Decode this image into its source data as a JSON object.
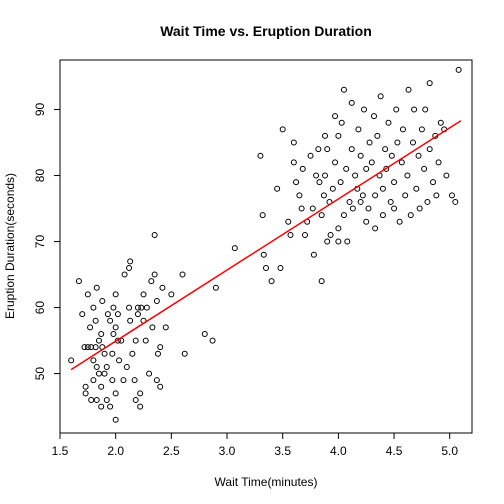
{
  "chart_data": {
    "type": "scatter",
    "title": "Wait Time vs. Eruption Duration",
    "xlabel": "Wait Time(minutes)",
    "ylabel": "Eruption Duration(seconds)",
    "xlim": [
      1.5,
      5.2
    ],
    "ylim": [
      41,
      97.5
    ],
    "x_ticks": [
      1.5,
      2.0,
      2.5,
      3.0,
      3.5,
      4.0,
      4.5,
      5.0
    ],
    "x_tick_labels": [
      "1.5",
      "2.0",
      "2.5",
      "3.0",
      "3.5",
      "4.0",
      "4.5",
      "5.0"
    ],
    "y_ticks": [
      50,
      60,
      70,
      80,
      90
    ],
    "y_tick_labels": [
      "50",
      "60",
      "70",
      "80",
      "90"
    ],
    "grid": false,
    "legend": "none",
    "point_color": "#000000",
    "fit_line": {
      "color": "#ff0000",
      "x": [
        1.6,
        5.1
      ],
      "y": [
        50.6,
        88.3
      ]
    },
    "points": [
      [
        1.6,
        52
      ],
      [
        1.67,
        64
      ],
      [
        1.7,
        59
      ],
      [
        1.72,
        54
      ],
      [
        1.73,
        48
      ],
      [
        1.73,
        47
      ],
      [
        1.75,
        62
      ],
      [
        1.75,
        54
      ],
      [
        1.77,
        57
      ],
      [
        1.78,
        54
      ],
      [
        1.78,
        46
      ],
      [
        1.8,
        60
      ],
      [
        1.8,
        52
      ],
      [
        1.8,
        49
      ],
      [
        1.82,
        58
      ],
      [
        1.82,
        54
      ],
      [
        1.83,
        46
      ],
      [
        1.83,
        51
      ],
      [
        1.83,
        63
      ],
      [
        1.85,
        50
      ],
      [
        1.85,
        55
      ],
      [
        1.87,
        56
      ],
      [
        1.87,
        48
      ],
      [
        1.87,
        45
      ],
      [
        1.88,
        54
      ],
      [
        1.88,
        61
      ],
      [
        1.9,
        50
      ],
      [
        1.9,
        53
      ],
      [
        1.92,
        51
      ],
      [
        1.92,
        46
      ],
      [
        1.93,
        59
      ],
      [
        1.95,
        58
      ],
      [
        1.95,
        45
      ],
      [
        1.97,
        49
      ],
      [
        1.97,
        53
      ],
      [
        1.98,
        56
      ],
      [
        1.98,
        60
      ],
      [
        2.0,
        47
      ],
      [
        2.0,
        43
      ],
      [
        2.0,
        62
      ],
      [
        2.0,
        57
      ],
      [
        2.02,
        55
      ],
      [
        2.02,
        59
      ],
      [
        2.03,
        52
      ],
      [
        2.05,
        55
      ],
      [
        2.07,
        49
      ],
      [
        2.08,
        65
      ],
      [
        2.1,
        51
      ],
      [
        2.12,
        60
      ],
      [
        2.12,
        66
      ],
      [
        2.13,
        58
      ],
      [
        2.13,
        67
      ],
      [
        2.15,
        53
      ],
      [
        2.17,
        49
      ],
      [
        2.18,
        55
      ],
      [
        2.18,
        46
      ],
      [
        2.2,
        59
      ],
      [
        2.2,
        60
      ],
      [
        2.22,
        47
      ],
      [
        2.22,
        45
      ],
      [
        2.23,
        60
      ],
      [
        2.25,
        58
      ],
      [
        2.25,
        62
      ],
      [
        2.27,
        55
      ],
      [
        2.28,
        60
      ],
      [
        2.3,
        50
      ],
      [
        2.32,
        64
      ],
      [
        2.33,
        57
      ],
      [
        2.35,
        65
      ],
      [
        2.35,
        71
      ],
      [
        2.37,
        61
      ],
      [
        2.37,
        49
      ],
      [
        2.38,
        53
      ],
      [
        2.4,
        54
      ],
      [
        2.4,
        48
      ],
      [
        2.42,
        63
      ],
      [
        2.45,
        57
      ],
      [
        2.5,
        62
      ],
      [
        2.6,
        65
      ],
      [
        2.62,
        53
      ],
      [
        2.8,
        56
      ],
      [
        2.87,
        55
      ],
      [
        2.9,
        63
      ],
      [
        3.07,
        69
      ],
      [
        3.3,
        83
      ],
      [
        3.32,
        74
      ],
      [
        3.33,
        68
      ],
      [
        3.35,
        66
      ],
      [
        3.4,
        64
      ],
      [
        3.45,
        78
      ],
      [
        3.48,
        66
      ],
      [
        3.5,
        87
      ],
      [
        3.55,
        73
      ],
      [
        3.57,
        71
      ],
      [
        3.6,
        85
      ],
      [
        3.6,
        82
      ],
      [
        3.62,
        79
      ],
      [
        3.65,
        77
      ],
      [
        3.67,
        75
      ],
      [
        3.68,
        81
      ],
      [
        3.7,
        71
      ],
      [
        3.72,
        73
      ],
      [
        3.75,
        83
      ],
      [
        3.77,
        75
      ],
      [
        3.78,
        68
      ],
      [
        3.8,
        80
      ],
      [
        3.82,
        84
      ],
      [
        3.83,
        79
      ],
      [
        3.85,
        64
      ],
      [
        3.85,
        74
      ],
      [
        3.87,
        77
      ],
      [
        3.88,
        80
      ],
      [
        3.88,
        86
      ],
      [
        3.9,
        70
      ],
      [
        3.9,
        84
      ],
      [
        3.92,
        76
      ],
      [
        3.93,
        71
      ],
      [
        3.95,
        78
      ],
      [
        3.97,
        82
      ],
      [
        3.97,
        89
      ],
      [
        4.0,
        70
      ],
      [
        4.0,
        72
      ],
      [
        4.0,
        86
      ],
      [
        4.02,
        79
      ],
      [
        4.03,
        88
      ],
      [
        4.05,
        93
      ],
      [
        4.05,
        74
      ],
      [
        4.07,
        81
      ],
      [
        4.08,
        70
      ],
      [
        4.1,
        76
      ],
      [
        4.12,
        84
      ],
      [
        4.12,
        91
      ],
      [
        4.13,
        75
      ],
      [
        4.15,
        80
      ],
      [
        4.17,
        78
      ],
      [
        4.18,
        87
      ],
      [
        4.2,
        83
      ],
      [
        4.2,
        76
      ],
      [
        4.22,
        77
      ],
      [
        4.23,
        90
      ],
      [
        4.25,
        73
      ],
      [
        4.25,
        81
      ],
      [
        4.27,
        75
      ],
      [
        4.28,
        85
      ],
      [
        4.3,
        82
      ],
      [
        4.32,
        89
      ],
      [
        4.33,
        77
      ],
      [
        4.33,
        72
      ],
      [
        4.35,
        86
      ],
      [
        4.37,
        80
      ],
      [
        4.38,
        92
      ],
      [
        4.4,
        74
      ],
      [
        4.4,
        78
      ],
      [
        4.42,
        84
      ],
      [
        4.43,
        81
      ],
      [
        4.45,
        88
      ],
      [
        4.47,
        76
      ],
      [
        4.48,
        83
      ],
      [
        4.5,
        75
      ],
      [
        4.5,
        79
      ],
      [
        4.52,
        90
      ],
      [
        4.53,
        85
      ],
      [
        4.55,
        73
      ],
      [
        4.57,
        82
      ],
      [
        4.58,
        87
      ],
      [
        4.6,
        77
      ],
      [
        4.62,
        80
      ],
      [
        4.63,
        93
      ],
      [
        4.65,
        74
      ],
      [
        4.67,
        85
      ],
      [
        4.68,
        90
      ],
      [
        4.7,
        78
      ],
      [
        4.72,
        83
      ],
      [
        4.73,
        75
      ],
      [
        4.75,
        87
      ],
      [
        4.77,
        81
      ],
      [
        4.78,
        90
      ],
      [
        4.8,
        76
      ],
      [
        4.82,
        94
      ],
      [
        4.82,
        84
      ],
      [
        4.85,
        79
      ],
      [
        4.87,
        86
      ],
      [
        4.88,
        77
      ],
      [
        4.9,
        82
      ],
      [
        4.92,
        88
      ],
      [
        4.95,
        87
      ],
      [
        4.97,
        80
      ],
      [
        5.02,
        77
      ],
      [
        5.05,
        76
      ],
      [
        5.08,
        96
      ]
    ]
  }
}
